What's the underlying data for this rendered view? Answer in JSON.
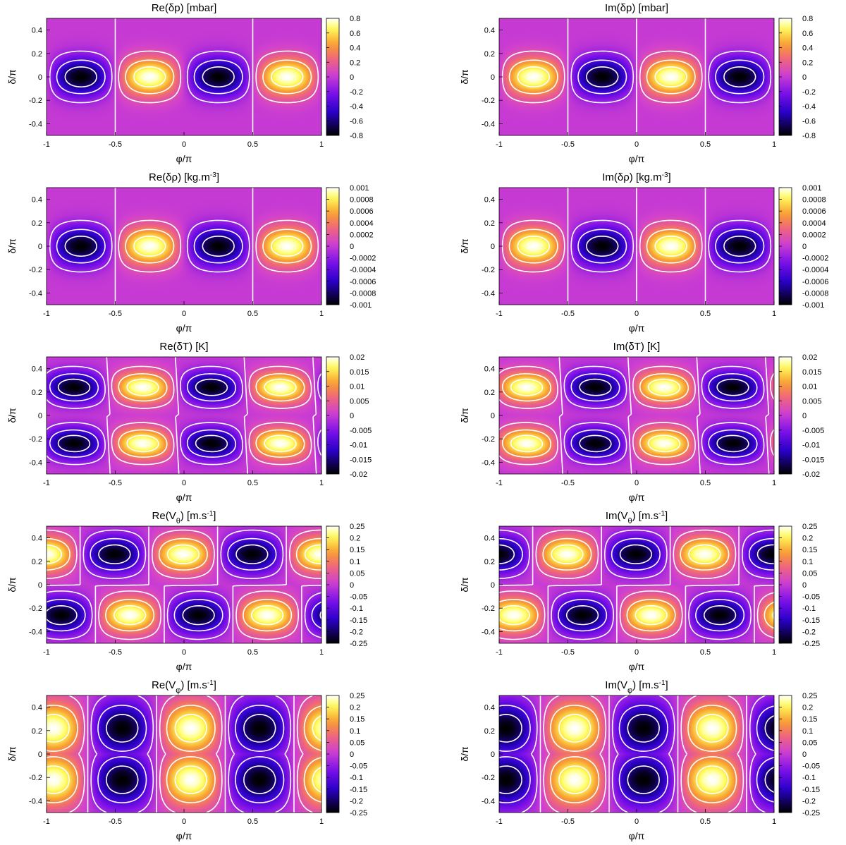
{
  "figure": {
    "axis_labels": {
      "x": "φ/π",
      "y": "δ/π"
    },
    "x_ticks": [
      "-1",
      "-0.5",
      "0",
      "0.5",
      "1"
    ],
    "y_ticks": [
      "-0.4",
      "-0.2",
      "0",
      "0.2",
      "0.4"
    ],
    "colormap": [
      "#000000",
      "#2a00c8",
      "#7a10e8",
      "#d040d0",
      "#f06878",
      "#f8a030",
      "#ffff60",
      "#ffffff"
    ],
    "contour_color": "#ffffff"
  },
  "chart_data": [
    {
      "type": "heatmap",
      "id": "re-dp",
      "row": 0,
      "col": 0,
      "title_main": "Re(δp) [mbar]",
      "title_sup": "",
      "title_tail": "",
      "xlim": [
        -1,
        1
      ],
      "ylim": [
        -0.5,
        0.5
      ],
      "field": {
        "kind": "pressure",
        "m": 2,
        "phase": 0,
        "amplitude": 0.8
      },
      "colorbar": {
        "min": -0.8,
        "max": 0.8,
        "ticks": [
          "0.8",
          "0.6",
          "0.4",
          "0.2",
          "0",
          "-0.2",
          "-0.4",
          "-0.6",
          "-0.8"
        ]
      }
    },
    {
      "type": "heatmap",
      "id": "im-dp",
      "row": 0,
      "col": 1,
      "title_main": "Im(δp) [mbar]",
      "title_sup": "",
      "title_tail": "",
      "xlim": [
        -1,
        1
      ],
      "ylim": [
        -0.5,
        0.5
      ],
      "field": {
        "kind": "pressure",
        "m": 2,
        "phase": 0.5,
        "amplitude": 0.8
      },
      "colorbar": {
        "min": -0.8,
        "max": 0.8,
        "ticks": [
          "0.8",
          "0.6",
          "0.4",
          "0.2",
          "0",
          "-0.2",
          "-0.4",
          "-0.6",
          "-0.8"
        ]
      }
    },
    {
      "type": "heatmap",
      "id": "re-drho",
      "row": 1,
      "col": 0,
      "title_main": "Re(δρ) [kg.m",
      "title_sup": "-3",
      "title_tail": "]",
      "xlim": [
        -1,
        1
      ],
      "ylim": [
        -0.5,
        0.5
      ],
      "field": {
        "kind": "pressure",
        "m": 2,
        "phase": 0,
        "amplitude": 0.001
      },
      "colorbar": {
        "min": -0.001,
        "max": 0.001,
        "ticks": [
          "0.001",
          "0.0008",
          "0.0006",
          "0.0004",
          "0.0002",
          "0",
          "-0.0002",
          "-0.0004",
          "-0.0006",
          "-0.0008",
          "-0.001"
        ]
      }
    },
    {
      "type": "heatmap",
      "id": "im-drho",
      "row": 1,
      "col": 1,
      "title_main": "Im(δρ) [kg.m",
      "title_sup": "-3",
      "title_tail": "]",
      "xlim": [
        -1,
        1
      ],
      "ylim": [
        -0.5,
        0.5
      ],
      "field": {
        "kind": "pressure",
        "m": 2,
        "phase": 0.5,
        "amplitude": 0.001
      },
      "colorbar": {
        "min": -0.001,
        "max": 0.001,
        "ticks": [
          "0.001",
          "0.0008",
          "0.0006",
          "0.0004",
          "0.0002",
          "0",
          "-0.0002",
          "-0.0004",
          "-0.0006",
          "-0.0008",
          "-0.001"
        ]
      }
    },
    {
      "type": "heatmap",
      "id": "re-dt",
      "row": 2,
      "col": 0,
      "title_main": "Re(δT) [K]",
      "title_sup": "",
      "title_tail": "",
      "xlim": [
        -1,
        1
      ],
      "ylim": [
        -0.5,
        0.5
      ],
      "field": {
        "kind": "temperature",
        "m": 2,
        "phase": 0.05,
        "amplitude": 0.02
      },
      "colorbar": {
        "min": -0.02,
        "max": 0.02,
        "ticks": [
          "0.02",
          "0.015",
          "0.01",
          "0.005",
          "0",
          "-0.005",
          "-0.01",
          "-0.015",
          "-0.02"
        ]
      }
    },
    {
      "type": "heatmap",
      "id": "im-dt",
      "row": 2,
      "col": 1,
      "title_main": "Im(δT) [K]",
      "title_sup": "",
      "title_tail": "",
      "xlim": [
        -1,
        1
      ],
      "ylim": [
        -0.5,
        0.5
      ],
      "field": {
        "kind": "temperature",
        "m": 2,
        "phase": 0.55,
        "amplitude": 0.02
      },
      "colorbar": {
        "min": -0.02,
        "max": 0.02,
        "ticks": [
          "0.02",
          "0.015",
          "0.01",
          "0.005",
          "0",
          "-0.005",
          "-0.01",
          "-0.015",
          "-0.02"
        ]
      }
    },
    {
      "type": "heatmap",
      "id": "re-vtheta",
      "row": 3,
      "col": 0,
      "title_main": "Re(V",
      "title_sub": "θ",
      "title_rest": ") [m.s",
      "title_sup": "-1",
      "title_tail": "]",
      "xlim": [
        -1,
        1
      ],
      "ylim": [
        -0.5,
        0.5
      ],
      "field": {
        "kind": "vtheta",
        "m": 2,
        "phase": -0.05,
        "amplitude": 0.25
      },
      "colorbar": {
        "min": -0.25,
        "max": 0.25,
        "ticks": [
          "0.25",
          "0.2",
          "0.15",
          "0.1",
          "0.05",
          "0",
          "-0.05",
          "-0.1",
          "-0.15",
          "-0.2",
          "-0.25"
        ]
      }
    },
    {
      "type": "heatmap",
      "id": "im-vtheta",
      "row": 3,
      "col": 1,
      "title_main": "Im(V",
      "title_sub": "θ",
      "title_rest": ") [m.s",
      "title_sup": "-1",
      "title_tail": "]",
      "xlim": [
        -1,
        1
      ],
      "ylim": [
        -0.5,
        0.5
      ],
      "field": {
        "kind": "vtheta",
        "m": 2,
        "phase": 0.45,
        "amplitude": 0.25
      },
      "colorbar": {
        "min": -0.25,
        "max": 0.25,
        "ticks": [
          "0.25",
          "0.2",
          "0.15",
          "0.1",
          "0.05",
          "0",
          "-0.05",
          "-0.1",
          "-0.15",
          "-0.2",
          "-0.25"
        ]
      }
    },
    {
      "type": "heatmap",
      "id": "re-vphi",
      "row": 4,
      "col": 0,
      "title_main": "Re(V",
      "title_sub": "φ",
      "title_rest": ") [m.s",
      "title_sup": "-1",
      "title_tail": "]",
      "xlim": [
        -1,
        1
      ],
      "ylim": [
        -0.5,
        0.5
      ],
      "field": {
        "kind": "vphi",
        "m": 2,
        "phase": -0.05,
        "amplitude": 0.25
      },
      "colorbar": {
        "min": -0.25,
        "max": 0.25,
        "ticks": [
          "0.25",
          "0.2",
          "0.15",
          "0.1",
          "0.05",
          "0",
          "-0.05",
          "-0.1",
          "-0.15",
          "-0.2",
          "-0.25"
        ]
      }
    },
    {
      "type": "heatmap",
      "id": "im-vphi",
      "row": 4,
      "col": 1,
      "title_main": "Im(V",
      "title_sub": "φ",
      "title_rest": ") [m.s",
      "title_sup": "-1",
      "title_tail": "]",
      "xlim": [
        -1,
        1
      ],
      "ylim": [
        -0.5,
        0.5
      ],
      "field": {
        "kind": "vphi",
        "m": 2,
        "phase": 0.45,
        "amplitude": 0.25
      },
      "colorbar": {
        "min": -0.25,
        "max": 0.25,
        "ticks": [
          "0.25",
          "0.2",
          "0.15",
          "0.1",
          "0.05",
          "0",
          "-0.05",
          "-0.1",
          "-0.15",
          "-0.2",
          "-0.25"
        ]
      }
    }
  ]
}
